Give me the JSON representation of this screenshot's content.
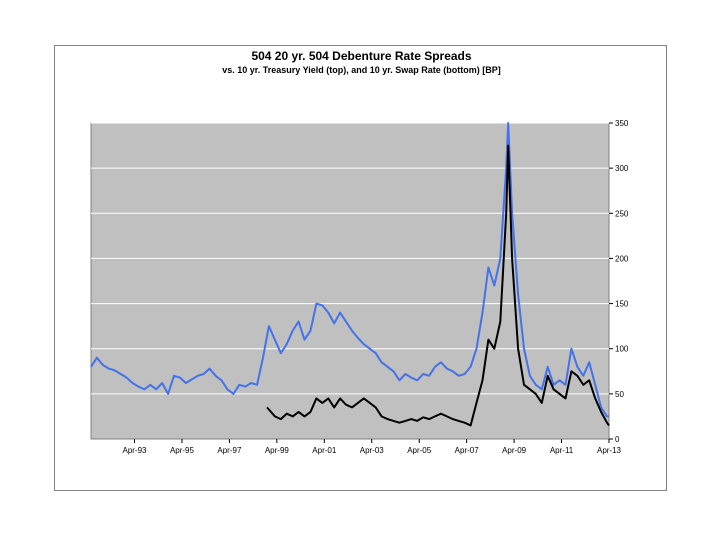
{
  "chart_data": {
    "type": "line",
    "title": "504 20 yr. 504 Debenture Rate Spreads",
    "subtitle": "vs. 10 yr. Treasury Yield (top), and 10 yr. Swap Rate (bottom) [BP]",
    "xlabel": "",
    "ylabel": "",
    "x_tick_labels": [
      "Apr-93",
      "Apr-95",
      "Apr-97",
      "Apr-99",
      "Apr-01",
      "Apr-03",
      "Apr-05",
      "Apr-07",
      "Apr-09",
      "Apr-11",
      "Apr-13"
    ],
    "y_tick_labels": [
      "0",
      "50",
      "100",
      "150",
      "200",
      "250",
      "300",
      "350"
    ],
    "xlim": [
      "1991-06",
      "2013-04"
    ],
    "ylim": [
      0,
      350
    ],
    "grid": "horizontal",
    "legend": "none",
    "series": [
      {
        "color": "#4472e8",
        "points": [
          [
            "1991-06",
            80
          ],
          [
            "1991-09",
            90
          ],
          [
            "1991-12",
            82
          ],
          [
            "1992-03",
            78
          ],
          [
            "1992-06",
            76
          ],
          [
            "1992-09",
            72
          ],
          [
            "1992-12",
            68
          ],
          [
            "1993-03",
            62
          ],
          [
            "1993-06",
            58
          ],
          [
            "1993-09",
            55
          ],
          [
            "1993-12",
            60
          ],
          [
            "1994-03",
            55
          ],
          [
            "1994-06",
            62
          ],
          [
            "1994-09",
            50
          ],
          [
            "1994-12",
            70
          ],
          [
            "1995-03",
            68
          ],
          [
            "1995-06",
            62
          ],
          [
            "1995-09",
            66
          ],
          [
            "1995-12",
            70
          ],
          [
            "1996-03",
            72
          ],
          [
            "1996-06",
            78
          ],
          [
            "1996-09",
            70
          ],
          [
            "1996-12",
            65
          ],
          [
            "1997-03",
            55
          ],
          [
            "1997-06",
            50
          ],
          [
            "1997-09",
            60
          ],
          [
            "1997-12",
            58
          ],
          [
            "1998-03",
            62
          ],
          [
            "1998-06",
            60
          ],
          [
            "1998-09",
            90
          ],
          [
            "1998-12",
            125
          ],
          [
            "1999-03",
            110
          ],
          [
            "1999-06",
            95
          ],
          [
            "1999-09",
            105
          ],
          [
            "1999-12",
            120
          ],
          [
            "2000-03",
            130
          ],
          [
            "2000-06",
            110
          ],
          [
            "2000-09",
            120
          ],
          [
            "2000-12",
            150
          ],
          [
            "2001-03",
            148
          ],
          [
            "2001-06",
            140
          ],
          [
            "2001-09",
            128
          ],
          [
            "2001-12",
            140
          ],
          [
            "2002-03",
            130
          ],
          [
            "2002-06",
            120
          ],
          [
            "2002-09",
            112
          ],
          [
            "2002-12",
            105
          ],
          [
            "2003-03",
            100
          ],
          [
            "2003-06",
            95
          ],
          [
            "2003-09",
            85
          ],
          [
            "2003-12",
            80
          ],
          [
            "2004-03",
            75
          ],
          [
            "2004-06",
            65
          ],
          [
            "2004-09",
            72
          ],
          [
            "2004-12",
            68
          ],
          [
            "2005-03",
            65
          ],
          [
            "2005-06",
            72
          ],
          [
            "2005-09",
            70
          ],
          [
            "2005-12",
            80
          ],
          [
            "2006-03",
            85
          ],
          [
            "2006-06",
            78
          ],
          [
            "2006-09",
            75
          ],
          [
            "2006-12",
            70
          ],
          [
            "2007-03",
            72
          ],
          [
            "2007-06",
            80
          ],
          [
            "2007-09",
            100
          ],
          [
            "2007-12",
            140
          ],
          [
            "2008-03",
            190
          ],
          [
            "2008-06",
            170
          ],
          [
            "2008-09",
            200
          ],
          [
            "2008-12",
            300
          ],
          [
            "2009-01",
            350
          ],
          [
            "2009-03",
            250
          ],
          [
            "2009-06",
            160
          ],
          [
            "2009-09",
            100
          ],
          [
            "2009-12",
            70
          ],
          [
            "2010-03",
            60
          ],
          [
            "2010-06",
            55
          ],
          [
            "2010-09",
            80
          ],
          [
            "2010-12",
            60
          ],
          [
            "2011-03",
            65
          ],
          [
            "2011-06",
            60
          ],
          [
            "2011-09",
            100
          ],
          [
            "2011-12",
            80
          ],
          [
            "2012-03",
            70
          ],
          [
            "2012-06",
            85
          ],
          [
            "2012-09",
            60
          ],
          [
            "2012-12",
            35
          ],
          [
            "2013-03",
            25
          ],
          [
            "2013-04",
            25
          ]
        ]
      },
      {
        "color": "#000000",
        "points": [
          [
            "1998-11",
            35
          ],
          [
            "1999-03",
            25
          ],
          [
            "1999-06",
            22
          ],
          [
            "1999-09",
            28
          ],
          [
            "1999-12",
            25
          ],
          [
            "2000-03",
            30
          ],
          [
            "2000-06",
            25
          ],
          [
            "2000-09",
            30
          ],
          [
            "2000-12",
            45
          ],
          [
            "2001-03",
            40
          ],
          [
            "2001-06",
            45
          ],
          [
            "2001-09",
            35
          ],
          [
            "2001-12",
            45
          ],
          [
            "2002-03",
            38
          ],
          [
            "2002-06",
            35
          ],
          [
            "2002-09",
            40
          ],
          [
            "2002-12",
            45
          ],
          [
            "2003-03",
            40
          ],
          [
            "2003-06",
            35
          ],
          [
            "2003-09",
            25
          ],
          [
            "2003-12",
            22
          ],
          [
            "2004-03",
            20
          ],
          [
            "2004-06",
            18
          ],
          [
            "2004-09",
            20
          ],
          [
            "2004-12",
            22
          ],
          [
            "2005-03",
            20
          ],
          [
            "2005-06",
            24
          ],
          [
            "2005-09",
            22
          ],
          [
            "2005-12",
            25
          ],
          [
            "2006-03",
            28
          ],
          [
            "2006-06",
            25
          ],
          [
            "2006-09",
            22
          ],
          [
            "2006-12",
            20
          ],
          [
            "2007-03",
            18
          ],
          [
            "2007-06",
            15
          ],
          [
            "2007-09",
            40
          ],
          [
            "2007-12",
            65
          ],
          [
            "2008-03",
            110
          ],
          [
            "2008-06",
            100
          ],
          [
            "2008-09",
            130
          ],
          [
            "2008-12",
            250
          ],
          [
            "2009-01",
            325
          ],
          [
            "2009-03",
            200
          ],
          [
            "2009-06",
            100
          ],
          [
            "2009-09",
            60
          ],
          [
            "2009-12",
            55
          ],
          [
            "2010-03",
            50
          ],
          [
            "2010-06",
            40
          ],
          [
            "2010-09",
            70
          ],
          [
            "2010-12",
            55
          ],
          [
            "2011-03",
            50
          ],
          [
            "2011-06",
            45
          ],
          [
            "2011-09",
            75
          ],
          [
            "2011-12",
            70
          ],
          [
            "2012-03",
            60
          ],
          [
            "2012-06",
            65
          ],
          [
            "2012-09",
            45
          ],
          [
            "2012-12",
            30
          ],
          [
            "2013-03",
            18
          ],
          [
            "2013-04",
            15
          ]
        ]
      }
    ]
  }
}
